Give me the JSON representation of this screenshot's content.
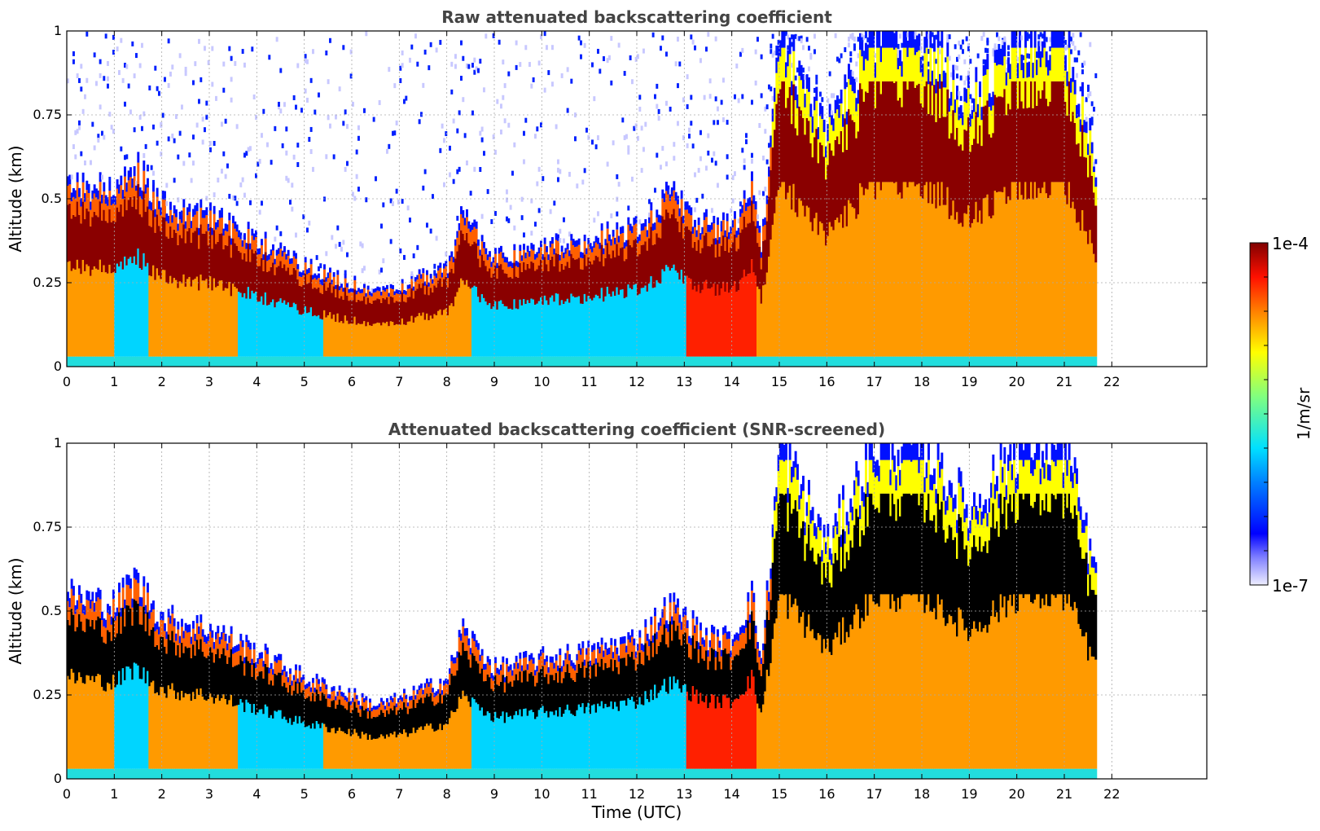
{
  "chart_data": [
    {
      "type": "heatmap",
      "title": "Raw attenuated backscattering coefficient",
      "xlabel": "",
      "ylabel": "Altitude (km)",
      "x_ticks": [
        "0",
        "1",
        "2",
        "3",
        "4",
        "5",
        "6",
        "7",
        "8",
        "9",
        "10",
        "11",
        "12",
        "13",
        "14",
        "15",
        "16",
        "17",
        "18",
        "19",
        "20",
        "21",
        "22"
      ],
      "y_ticks": [
        "0",
        "0.25",
        "0.5",
        "0.75",
        "1"
      ],
      "xlim": [
        0,
        24
      ],
      "ylim": [
        0,
        1
      ],
      "grid": true,
      "screened": false,
      "data_end_hour": 21.65,
      "layer_top_km": {
        "time_utc": [
          0,
          1,
          1.4,
          2,
          3,
          4,
          5,
          6,
          6.5,
          7,
          8,
          8.3,
          9,
          10,
          11,
          12,
          12.7,
          13,
          13.5,
          14,
          14.4,
          14.6,
          15,
          16,
          17,
          18,
          19,
          20,
          21,
          21.65
        ],
        "altitude_km": [
          0.55,
          0.52,
          0.6,
          0.48,
          0.45,
          0.38,
          0.3,
          0.25,
          0.22,
          0.24,
          0.3,
          0.45,
          0.33,
          0.36,
          0.38,
          0.42,
          0.52,
          0.48,
          0.42,
          0.42,
          0.55,
          0.35,
          1,
          0.7,
          1,
          1,
          0.8,
          1,
          1,
          0.6
        ]
      }
    },
    {
      "type": "heatmap",
      "title": "Attenuated backscattering coefficient (SNR-screened)",
      "xlabel": "Time (UTC)",
      "ylabel": "Altitude (km)",
      "x_ticks": [
        "0",
        "1",
        "2",
        "3",
        "4",
        "5",
        "6",
        "7",
        "8",
        "9",
        "10",
        "11",
        "12",
        "13",
        "14",
        "15",
        "16",
        "17",
        "18",
        "19",
        "20",
        "21",
        "22"
      ],
      "y_ticks": [
        "0",
        "0.25",
        "0.5",
        "0.75",
        "1"
      ],
      "xlim": [
        0,
        24
      ],
      "ylim": [
        0,
        1
      ],
      "grid": true,
      "screened": true,
      "data_end_hour": 21.65,
      "layer_top_km": {
        "time_utc": [
          0,
          1,
          1.4,
          2,
          3,
          4,
          5,
          6,
          6.5,
          7,
          8,
          8.3,
          9,
          10,
          11,
          12,
          12.7,
          13,
          13.5,
          14,
          14.4,
          14.6,
          15,
          16,
          17,
          18,
          19,
          20,
          21,
          21.65
        ],
        "altitude_km": [
          0.55,
          0.52,
          0.6,
          0.48,
          0.45,
          0.38,
          0.3,
          0.25,
          0.22,
          0.24,
          0.3,
          0.45,
          0.33,
          0.36,
          0.38,
          0.42,
          0.52,
          0.48,
          0.42,
          0.42,
          0.55,
          0.35,
          1,
          0.7,
          1,
          1,
          0.8,
          1,
          1,
          0.6
        ]
      }
    }
  ],
  "colorbar": {
    "min_label": "1e-7",
    "max_label": "1e-4",
    "unit_label": "1/m/sr",
    "colormap": "jet",
    "colors": [
      "#e8e8ff",
      "#0000ff",
      "#00d5ff",
      "#7fff7f",
      "#ffff00",
      "#ff7f00",
      "#ff0000",
      "#7f0000"
    ]
  }
}
